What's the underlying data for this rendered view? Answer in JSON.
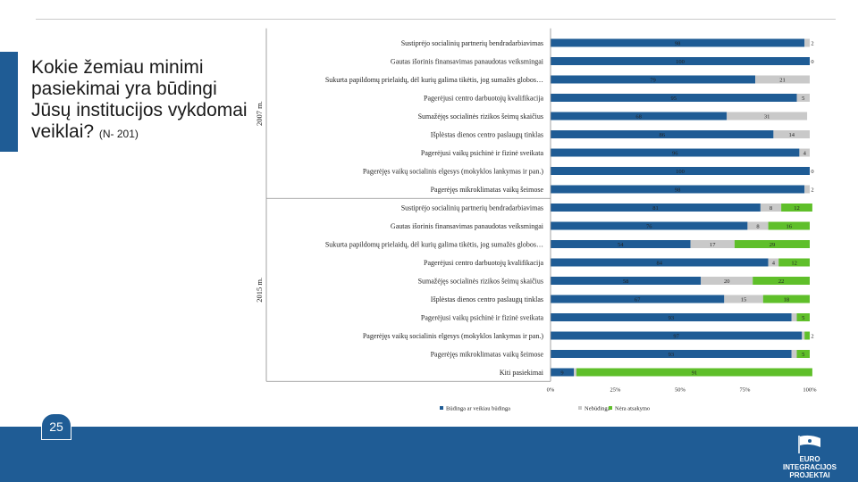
{
  "slide": {
    "title": "Kokie žemiau minimi pasiekimai yra būdingi Jūsų institucijos vykdomai veiklai?",
    "sample": "(N- 201)",
    "page_number": "25",
    "logo_text": "EURO INTEGRACIJOS PROJEKTAI"
  },
  "chart_data": {
    "type": "bar",
    "orientation": "horizontal",
    "stacked": "percent",
    "xlim": [
      0,
      100
    ],
    "x_ticks": [
      "0%",
      "25%",
      "50%",
      "75%",
      "100%"
    ],
    "colors": {
      "Būdinga ar veikiau būdinga": "#1f5c95",
      "Nebūdinga": "#c9c9c9",
      "Nėra atsakymo": "#5fbf2a"
    },
    "legend": [
      "Būdinga ar veikiau būdinga",
      "Nebūdinga",
      "Nėra atsakymo"
    ],
    "legend_position": "bottom",
    "groups": [
      {
        "name": "2007 m.",
        "rows": [
          {
            "label": "Sustiprėjo socialinių partnerių bendradarbiavimas",
            "values": [
              98,
              2
            ]
          },
          {
            "label": "Gautas išorinis finansavimas panaudotas veiksmingai",
            "values": [
              100,
              0
            ]
          },
          {
            "label": "Sukurta papildomų prielaidų, dėl kurių galima tikėtis, jog sumažės globos…",
            "values": [
              79,
              21
            ]
          },
          {
            "label": "Pagerėjusi centro darbuotojų kvalifikacija",
            "values": [
              95,
              5
            ]
          },
          {
            "label": "Sumažėjęs socialinės rizikos šeimų skaičius",
            "values": [
              68,
              31
            ]
          },
          {
            "label": "Išplėstas dienos centro paslaugų tinklas",
            "values": [
              86,
              14
            ]
          },
          {
            "label": "Pagerėjusi vaikų psichinė ir fizinė sveikata",
            "values": [
              96,
              4
            ]
          },
          {
            "label": "Pagerėjęs vaikų socialinis elgesys (mokyklos lankymas ir pan.)",
            "values": [
              100,
              0
            ]
          },
          {
            "label": "Pagerėjęs mikroklimatas vaikų šeimose",
            "values": [
              98,
              2
            ]
          }
        ]
      },
      {
        "name": "2015 m.",
        "rows": [
          {
            "label": "Sustiprėjo socialinių partnerių bendradarbiavimas",
            "values": [
              81,
              8,
              12
            ]
          },
          {
            "label": "Gautas išorinis finansavimas panaudotas veiksmingai",
            "values": [
              76,
              8,
              16
            ]
          },
          {
            "label": "Sukurta papildomų prielaidų, dėl kurių galima tikėtis, jog sumažės globos…",
            "values": [
              54,
              17,
              29
            ]
          },
          {
            "label": "Pagerėjusi centro darbuotojų kvalifikacija",
            "values": [
              84,
              4,
              12
            ]
          },
          {
            "label": "Sumažėjęs socialinės rizikos šeimų skaičius",
            "values": [
              58,
              20,
              22
            ]
          },
          {
            "label": "Išplėstas dienos centro paslaugų tinklas",
            "values": [
              67,
              15,
              18
            ]
          },
          {
            "label": "Pagerėjusi vaikų psichinė ir fizinė sveikata",
            "values": [
              93,
              2,
              5
            ]
          },
          {
            "label": "Pagerėjęs vaikų socialinis elgesys (mokyklos lankymas ir pan.)",
            "values": [
              97,
              1,
              2
            ]
          },
          {
            "label": "Pagerėjęs mikroklimatas vaikų šeimose",
            "values": [
              93,
              2,
              5
            ]
          },
          {
            "label": "Kiti pasiekimai",
            "values": [
              9,
              1,
              91
            ]
          }
        ]
      }
    ],
    "value_labels": {
      "2007 m.": [
        [
          "98",
          "2"
        ],
        [
          "100",
          "0"
        ],
        [
          "79",
          "21"
        ],
        [
          "95",
          "5"
        ],
        [
          "68",
          "31"
        ],
        [
          "86",
          "14"
        ],
        [
          "96",
          "4"
        ],
        [
          "100",
          "0"
        ],
        [
          "98",
          "2"
        ]
      ],
      "2015 m.": [
        [
          "81",
          "8",
          "12"
        ],
        [
          "76",
          "8",
          "16"
        ],
        [
          "54",
          "17",
          "29"
        ],
        [
          "84",
          "4",
          "12"
        ],
        [
          "58",
          "20",
          "22"
        ],
        [
          "67",
          "15",
          "18"
        ],
        [
          "93",
          "2",
          "5"
        ],
        [
          "97",
          "1",
          "2"
        ],
        [
          "93",
          "2",
          "5"
        ],
        [
          "9",
          "1",
          "91"
        ]
      ]
    }
  }
}
